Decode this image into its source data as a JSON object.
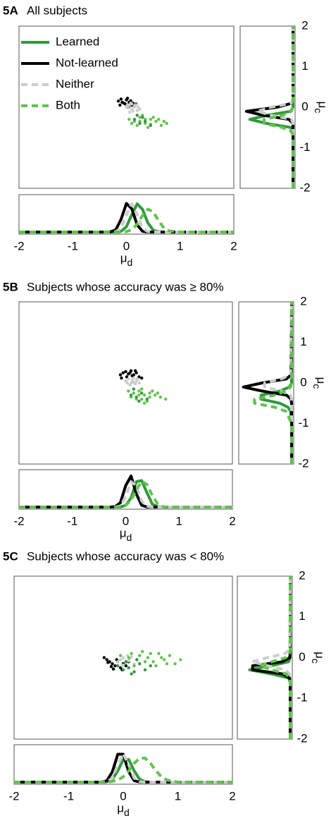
{
  "chart_data": [
    {
      "type": "scatter",
      "panel": "5A",
      "title": "All subjects",
      "xlim": [
        -2,
        2
      ],
      "ylim": [
        -2,
        2
      ],
      "legend": "upper left",
      "series": [
        {
          "name": "Learned",
          "color": "#2f9a3a",
          "linestyle": "solid",
          "x": [
            0.15,
            0.25,
            0.35,
            0.45,
            0.3,
            0.2
          ],
          "y": [
            -0.3,
            -0.4,
            -0.35,
            -0.45,
            -0.25,
            -0.2
          ]
        },
        {
          "name": "Not-learned",
          "color": "#000000",
          "linestyle": "solid",
          "x": [
            -0.15,
            -0.1,
            -0.05,
            0,
            0.05,
            0.1,
            -0.12,
            0.02,
            0.08,
            0.15,
            -0.08,
            0.12,
            0.04,
            -0.02,
            0.18
          ],
          "y": [
            0.15,
            0.2,
            0.1,
            0.18,
            0.12,
            0.05,
            0.05,
            0.22,
            0.16,
            0.02,
            0.12,
            0.1,
            0.0,
            0.08,
            0.08
          ]
        },
        {
          "name": "Neither",
          "color": "#cccccc",
          "linestyle": "dashed",
          "x": [
            0,
            0.05,
            0.1,
            0.15,
            0.2,
            0.08,
            0.12,
            0.03,
            0.18,
            0.25,
            0.1,
            0.06,
            0.14,
            0.22,
            0.02
          ],
          "y": [
            0.0,
            0.05,
            -0.05,
            0.02,
            -0.08,
            0.1,
            -0.1,
            -0.02,
            0.06,
            -0.05,
            0.08,
            -0.12,
            0.0,
            0.0,
            0.06
          ]
        },
        {
          "name": "Both",
          "color": "#5ec44a",
          "linestyle": "dashed",
          "x": [
            0.05,
            0.15,
            0.25,
            0.35,
            0.45,
            0.55,
            0.65,
            0.75,
            0.2,
            0.3,
            0.4,
            0.5,
            0.6,
            0.1,
            0.7,
            0.35,
            0.45,
            0.25
          ],
          "y": [
            -0.3,
            -0.35,
            -0.25,
            -0.4,
            -0.3,
            -0.35,
            -0.45,
            -0.4,
            -0.45,
            -0.2,
            -0.5,
            -0.25,
            -0.3,
            -0.4,
            -0.35,
            -0.3,
            -0.42,
            -0.35
          ]
        }
      ]
    },
    {
      "type": "line",
      "xlim": [
        -2,
        2
      ],
      "ylim": [
        0,
        1
      ],
      "xticks": [
        -2,
        -1,
        0,
        1,
        2
      ],
      "xlabel": "μd",
      "x": [
        -2,
        -1,
        -0.4,
        -0.3,
        -0.2,
        -0.1,
        0,
        0.1,
        0.2,
        0.3,
        0.4,
        0.5,
        0.6,
        0.7,
        0.8,
        1,
        2
      ],
      "series": [
        {
          "color": "#2f9a3a",
          "linestyle": "solid",
          "values": [
            0,
            0,
            0,
            0,
            0,
            0.02,
            0.15,
            0.49,
            0.8,
            0.64,
            0.26,
            0.05,
            0.01,
            0,
            0,
            0,
            0
          ]
        },
        {
          "color": "#000000",
          "linestyle": "solid",
          "values": [
            0,
            0,
            0,
            0.004,
            0.06,
            0.36,
            0.81,
            0.66,
            0.2,
            0.02,
            0,
            0,
            0,
            0,
            0,
            0,
            0
          ]
        },
        {
          "color": "#cccccc",
          "linestyle": "dashed",
          "values": [
            0,
            0,
            0,
            0,
            0.01,
            0.11,
            0.49,
            0.8,
            0.49,
            0.11,
            0.01,
            0,
            0,
            0,
            0,
            0,
            0
          ]
        },
        {
          "color": "#5ec44a",
          "linestyle": "dashed",
          "values": [
            0,
            0,
            0,
            0,
            0,
            0,
            0.01,
            0.07,
            0.22,
            0.47,
            0.65,
            0.57,
            0.32,
            0.11,
            0.03,
            0,
            0
          ]
        }
      ]
    },
    {
      "type": "line",
      "xlim": [
        1,
        0
      ],
      "ylim": [
        -2,
        2
      ],
      "yticks": [
        -2,
        -1,
        0,
        1,
        2
      ],
      "ylabel": "μc",
      "y": [
        -2,
        -1,
        -0.7,
        -0.6,
        -0.5,
        -0.4,
        -0.3,
        -0.2,
        -0.1,
        0,
        0.1,
        0.2,
        2
      ],
      "series": [
        {
          "color": "#2f9a3a",
          "linestyle": "solid",
          "values": [
            0,
            0,
            0,
            0,
            0.04,
            0.52,
            0.85,
            0.52,
            0.04,
            0,
            0,
            0,
            0
          ]
        },
        {
          "color": "#000000",
          "linestyle": "solid",
          "values": [
            0,
            0,
            0,
            0,
            0,
            0,
            0.08,
            0.58,
            0.92,
            0.31,
            0.02,
            0,
            0
          ]
        },
        {
          "color": "#cccccc",
          "linestyle": "dashed",
          "values": [
            0,
            0,
            0,
            0,
            0,
            0,
            0.03,
            0.43,
            0.7,
            0.43,
            0.03,
            0,
            0
          ]
        },
        {
          "color": "#5ec44a",
          "linestyle": "dashed",
          "values": [
            0,
            0,
            0,
            0.03,
            0.21,
            0.57,
            0.57,
            0.21,
            0.03,
            0,
            0,
            0,
            0
          ]
        }
      ]
    },
    {
      "type": "scatter",
      "panel": "5B",
      "title": "Subjects whose accuracy was ≥ 80%",
      "xlim": [
        -2,
        2
      ],
      "ylim": [
        -2,
        2
      ],
      "series": [
        {
          "color": "#2f9a3a",
          "x": [
            0.1,
            0.2,
            0.3,
            0.4,
            0.25,
            0.15
          ],
          "y": [
            -0.3,
            -0.35,
            -0.25,
            -0.4,
            -0.45,
            -0.15
          ]
        },
        {
          "color": "#000000",
          "x": [
            -0.1,
            -0.05,
            0,
            0.05,
            0.1,
            0.15,
            0.2,
            0.25,
            -0.08,
            0.02,
            0.12,
            0.22,
            0.08,
            0.3,
            0.18
          ],
          "y": [
            0.2,
            0.25,
            0.28,
            0.22,
            0.3,
            0.2,
            0.25,
            0.15,
            0.12,
            0.15,
            0.18,
            0.1,
            0.25,
            0.12,
            0.3
          ]
        },
        {
          "color": "#cccccc",
          "x": [
            0,
            0.05,
            0.1,
            0.15,
            0.2,
            0.25,
            0.08,
            0.12,
            0.18,
            0.03,
            0.22,
            0.14
          ],
          "y": [
            0.05,
            0.1,
            0.0,
            0.12,
            0.05,
            0.0,
            -0.05,
            0.08,
            -0.02,
            0.0,
            0.1,
            0.02
          ]
        },
        {
          "color": "#5ec44a",
          "x": [
            0.05,
            0.15,
            0.25,
            0.35,
            0.45,
            0.55,
            0.65,
            0.75,
            0.2,
            0.3,
            0.4,
            0.5,
            0.6,
            0.1,
            0.35,
            0.45,
            0.25,
            0.3
          ],
          "y": [
            -0.2,
            -0.25,
            -0.2,
            -0.3,
            -0.25,
            -0.3,
            -0.35,
            -0.4,
            -0.4,
            -0.15,
            -0.45,
            -0.2,
            -0.25,
            -0.35,
            -0.5,
            -0.35,
            -0.3,
            -0.4
          ]
        }
      ]
    },
    {
      "type": "line",
      "xlim": [
        -2,
        2
      ],
      "ylim": [
        0,
        1
      ],
      "xticks": [
        -2,
        -1,
        0,
        1,
        2
      ],
      "xlabel": "μd",
      "x": [
        -2,
        -1,
        -0.4,
        -0.3,
        -0.2,
        -0.1,
        0,
        0.1,
        0.2,
        0.3,
        0.4,
        0.5,
        0.6,
        0.7,
        0.8,
        1,
        2
      ],
      "series": [
        {
          "color": "#2f9a3a",
          "linestyle": "solid",
          "values": [
            0,
            0,
            0,
            0,
            0,
            0,
            0.05,
            0.26,
            0.72,
            0.75,
            0.4,
            0.08,
            0.01,
            0,
            0,
            0,
            0
          ]
        },
        {
          "color": "#000000",
          "linestyle": "solid",
          "values": [
            0,
            0,
            0,
            0,
            0.01,
            0.12,
            0.61,
            0.88,
            0.37,
            0.05,
            0,
            0,
            0,
            0,
            0,
            0,
            0
          ]
        },
        {
          "color": "#cccccc",
          "linestyle": "dashed",
          "values": [
            0,
            0,
            0,
            0,
            0,
            0.03,
            0.3,
            0.72,
            0.6,
            0.17,
            0.02,
            0,
            0,
            0,
            0,
            0,
            0
          ]
        },
        {
          "color": "#5ec44a",
          "linestyle": "dashed",
          "values": [
            0,
            0,
            0,
            0,
            0,
            0,
            0.05,
            0.19,
            0.49,
            0.73,
            0.64,
            0.32,
            0.09,
            0.01,
            0,
            0,
            0
          ]
        }
      ]
    },
    {
      "type": "line",
      "xlim": [
        1,
        0
      ],
      "ylim": [
        -2,
        2
      ],
      "yticks": [
        -2,
        -1,
        0,
        1,
        2
      ],
      "ylabel": "μc",
      "y": [
        -2,
        -1,
        -0.7,
        -0.6,
        -0.5,
        -0.4,
        -0.3,
        -0.2,
        -0.1,
        0,
        0.1,
        0.2,
        2
      ],
      "series": [
        {
          "color": "#2f9a3a",
          "linestyle": "solid",
          "values": [
            0,
            0,
            0.02,
            0.07,
            0.23,
            0.6,
            0.6,
            0.23,
            0.04,
            0,
            0,
            0,
            0
          ]
        },
        {
          "color": "#000000",
          "linestyle": "solid",
          "values": [
            0,
            0,
            0,
            0,
            0,
            0.01,
            0.1,
            0.58,
            0.95,
            0.58,
            0.1,
            0.01,
            0
          ]
        },
        {
          "color": "#cccccc",
          "linestyle": "dashed",
          "values": [
            0,
            0,
            0,
            0,
            0,
            0,
            0.02,
            0.2,
            0.53,
            0.53,
            0.2,
            0.02,
            0
          ]
        },
        {
          "color": "#5ec44a",
          "linestyle": "dashed",
          "values": [
            0,
            0,
            0.11,
            0.33,
            0.73,
            0.73,
            0.33,
            0.11,
            0.02,
            0,
            0,
            0,
            0
          ]
        }
      ]
    },
    {
      "type": "scatter",
      "panel": "5C",
      "title": "Subjects whose accuracy was < 80%",
      "xlim": [
        -2,
        2
      ],
      "ylim": [
        -2,
        2
      ],
      "series": [
        {
          "color": "#2f9a3a",
          "x": [
            -0.1,
            0,
            0.1,
            0.2,
            0.3,
            0.4,
            0.5,
            0.05,
            0.15,
            0.25
          ],
          "y": [
            -0.2,
            -0.3,
            -0.25,
            -0.35,
            -0.15,
            -0.3,
            -0.2,
            -0.1,
            -0.4,
            -0.05
          ]
        },
        {
          "color": "#000000",
          "x": [
            -0.35,
            -0.3,
            -0.25,
            -0.2,
            -0.15,
            -0.1,
            -0.05,
            0,
            0.05,
            -0.22,
            -0.12,
            -0.02,
            0.1,
            -0.28,
            -0.18
          ],
          "y": [
            0.0,
            -0.05,
            -0.1,
            -0.15,
            -0.2,
            -0.1,
            -0.25,
            -0.15,
            -0.2,
            -0.22,
            -0.05,
            -0.3,
            -0.1,
            -0.12,
            -0.28
          ]
        },
        {
          "color": "#cccccc",
          "x": [
            -0.1,
            -0.05,
            0,
            0.05,
            0.1,
            0.15,
            0.2,
            0,
            0.08,
            -0.02,
            0.12,
            0.25
          ],
          "y": [
            -0.1,
            -0.05,
            0.0,
            -0.12,
            -0.08,
            0.02,
            -0.15,
            -0.18,
            0.05,
            -0.2,
            -0.02,
            -0.05
          ]
        },
        {
          "color": "#5ec44a",
          "x": [
            -0.05,
            0.05,
            0.15,
            0.25,
            0.35,
            0.45,
            0.55,
            0.65,
            0.75,
            0.85,
            0.95,
            1.05,
            0.2,
            0.3,
            0.4,
            0.5,
            0.6,
            0.7,
            0.1,
            0.8
          ],
          "y": [
            0.05,
            -0.1,
            0.1,
            -0.05,
            0.15,
            0.0,
            -0.1,
            0.1,
            -0.05,
            0.05,
            -0.15,
            -0.05,
            -0.2,
            0.05,
            -0.1,
            0.1,
            -0.2,
            0.0,
            0.0,
            -0.15
          ]
        }
      ]
    },
    {
      "type": "line",
      "xlim": [
        -2,
        2
      ],
      "ylim": [
        0,
        1
      ],
      "xticks": [
        -2,
        -1,
        0,
        1,
        2
      ],
      "xlabel": "μd",
      "x": [
        -2,
        -1,
        -0.4,
        -0.3,
        -0.2,
        -0.1,
        0,
        0.1,
        0.2,
        0.3,
        0.4,
        0.5,
        0.6,
        0.7,
        0.8,
        1,
        2
      ],
      "series": [
        {
          "color": "#2f9a3a",
          "linestyle": "solid",
          "values": [
            0,
            0,
            0,
            0.01,
            0.08,
            0.32,
            0.64,
            0.64,
            0.32,
            0.08,
            0.01,
            0,
            0,
            0,
            0,
            0,
            0
          ]
        },
        {
          "color": "#000000",
          "linestyle": "solid",
          "values": [
            0,
            0,
            0,
            0.04,
            0.29,
            0.79,
            0.79,
            0.29,
            0.04,
            0,
            0,
            0,
            0,
            0,
            0,
            0,
            0
          ]
        },
        {
          "color": "#cccccc",
          "linestyle": "dashed",
          "values": [
            0,
            0,
            0,
            0.01,
            0.11,
            0.49,
            0.8,
            0.49,
            0.11,
            0.01,
            0,
            0,
            0,
            0,
            0,
            0,
            0
          ]
        },
        {
          "color": "#5ec44a",
          "linestyle": "dashed",
          "values": [
            0,
            0,
            0,
            0,
            0.02,
            0.06,
            0.15,
            0.32,
            0.53,
            0.68,
            0.68,
            0.53,
            0.32,
            0.15,
            0.06,
            0,
            0
          ]
        }
      ]
    },
    {
      "type": "line",
      "xlim": [
        1,
        0
      ],
      "ylim": [
        -2,
        2
      ],
      "yticks": [
        -2,
        -1,
        0,
        1,
        2
      ],
      "ylabel": "μc",
      "y": [
        -2,
        -1,
        -0.7,
        -0.6,
        -0.5,
        -0.4,
        -0.3,
        -0.2,
        -0.1,
        0,
        0.1,
        0.2,
        2
      ],
      "series": [
        {
          "color": "#2f9a3a",
          "linestyle": "solid",
          "values": [
            0,
            0,
            0,
            0,
            0.03,
            0.37,
            0.8,
            0.37,
            0.03,
            0,
            0,
            0,
            0
          ]
        },
        {
          "color": "#000000",
          "linestyle": "solid",
          "values": [
            0,
            0,
            0,
            0,
            0.01,
            0.15,
            0.74,
            0.74,
            0.15,
            0.01,
            0,
            0,
            0
          ]
        },
        {
          "color": "#cccccc",
          "linestyle": "dashed",
          "values": [
            0,
            0,
            0,
            0,
            0,
            0.01,
            0.1,
            0.45,
            0.75,
            0.45,
            0.1,
            0.01,
            0
          ]
        },
        {
          "color": "#5ec44a",
          "linestyle": "dashed",
          "values": [
            0,
            0,
            0,
            0,
            0.01,
            0.08,
            0.36,
            0.6,
            0.36,
            0.08,
            0.01,
            0,
            0
          ]
        }
      ]
    }
  ]
}
